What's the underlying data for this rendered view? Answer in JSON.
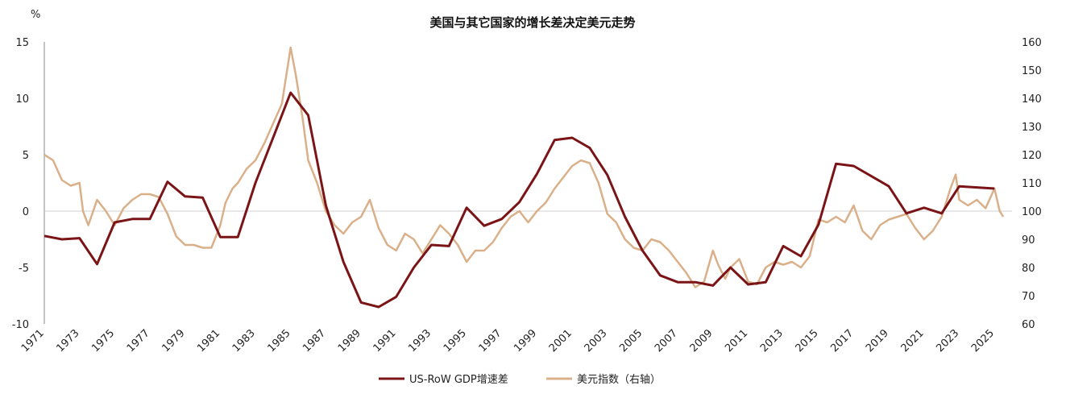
{
  "chart_data": {
    "type": "line",
    "title": "美国与其它国家的增长差决定美元走势",
    "left_unit": "%",
    "left_ylim": [
      -10,
      15
    ],
    "left_ticks": [
      15,
      10,
      5,
      0,
      -5,
      -10
    ],
    "right_ylim": [
      60,
      160
    ],
    "right_ticks": [
      160,
      150,
      140,
      130,
      120,
      110,
      100,
      90,
      80,
      70,
      60
    ],
    "xlim": [
      1971,
      2026
    ],
    "x_ticks": [
      "1971",
      "1973",
      "1975",
      "1977",
      "1979",
      "1981",
      "1983",
      "1985",
      "1987",
      "1989",
      "1991",
      "1993",
      "1995",
      "1997",
      "1999",
      "2001",
      "2003",
      "2005",
      "2007",
      "2009",
      "2011",
      "2013",
      "2015",
      "2017",
      "2019",
      "2021",
      "2023",
      "2025"
    ],
    "grid": "horizontal zero line only",
    "legend_position": "bottom-center",
    "series": [
      {
        "name": "US-RoW GDP增速差",
        "axis": "left",
        "color": "#7a1416",
        "points": [
          [
            1971,
            -2.2
          ],
          [
            1972,
            -2.5
          ],
          [
            1973,
            -2.4
          ],
          [
            1974,
            -4.7
          ],
          [
            1975,
            -1.0
          ],
          [
            1976,
            -0.7
          ],
          [
            1977,
            -0.7
          ],
          [
            1978,
            2.6
          ],
          [
            1979,
            1.3
          ],
          [
            1980,
            1.2
          ],
          [
            1981,
            -2.3
          ],
          [
            1982,
            -2.3
          ],
          [
            1983,
            2.5
          ],
          [
            1984,
            6.5
          ],
          [
            1985,
            10.5
          ],
          [
            1986,
            8.5
          ],
          [
            1987,
            0.5
          ],
          [
            1988,
            -4.5
          ],
          [
            1989,
            -8.1
          ],
          [
            1990,
            -8.5
          ],
          [
            1991,
            -7.6
          ],
          [
            1992,
            -5.0
          ],
          [
            1993,
            -3.0
          ],
          [
            1994,
            -3.1
          ],
          [
            1995,
            0.3
          ],
          [
            1996,
            -1.3
          ],
          [
            1997,
            -0.7
          ],
          [
            1998,
            0.8
          ],
          [
            1999,
            3.3
          ],
          [
            2000,
            6.3
          ],
          [
            2001,
            6.5
          ],
          [
            2002,
            5.6
          ],
          [
            2003,
            3.2
          ],
          [
            2004,
            -0.5
          ],
          [
            2005,
            -3.5
          ],
          [
            2006,
            -5.7
          ],
          [
            2007,
            -6.3
          ],
          [
            2008,
            -6.3
          ],
          [
            2009,
            -6.6
          ],
          [
            2010,
            -5.0
          ],
          [
            2011,
            -6.5
          ],
          [
            2012,
            -6.3
          ],
          [
            2013,
            -3.1
          ],
          [
            2014,
            -4.0
          ],
          [
            2015,
            -1.2
          ],
          [
            2016,
            4.2
          ],
          [
            2017,
            4.0
          ],
          [
            2018,
            3.1
          ],
          [
            2019,
            2.2
          ],
          [
            2020,
            -0.2
          ],
          [
            2021,
            0.3
          ],
          [
            2022,
            -0.2
          ],
          [
            2023,
            2.2
          ],
          [
            2024,
            2.1
          ],
          [
            2025,
            2.0
          ]
        ]
      },
      {
        "name": "美元指数（右轴）",
        "axis": "right",
        "color": "#d9b08a",
        "points": [
          [
            1971,
            120
          ],
          [
            1971.5,
            118
          ],
          [
            1972,
            111
          ],
          [
            1972.5,
            109
          ],
          [
            1973,
            110
          ],
          [
            1973.2,
            100
          ],
          [
            1973.5,
            95
          ],
          [
            1974,
            104
          ],
          [
            1974.5,
            100
          ],
          [
            1975,
            95
          ],
          [
            1975.5,
            101
          ],
          [
            1976,
            104
          ],
          [
            1976.5,
            106
          ],
          [
            1977,
            106
          ],
          [
            1977.5,
            105
          ],
          [
            1978,
            99
          ],
          [
            1978.5,
            91
          ],
          [
            1979,
            88
          ],
          [
            1979.5,
            88
          ],
          [
            1980,
            87
          ],
          [
            1980.5,
            87
          ],
          [
            1981,
            95
          ],
          [
            1981.3,
            103
          ],
          [
            1981.7,
            108
          ],
          [
            1982,
            110
          ],
          [
            1982.5,
            115
          ],
          [
            1983,
            118
          ],
          [
            1983.5,
            124
          ],
          [
            1984,
            131
          ],
          [
            1984.5,
            138
          ],
          [
            1985,
            158
          ],
          [
            1985.3,
            148
          ],
          [
            1985.7,
            132
          ],
          [
            1986,
            118
          ],
          [
            1986.5,
            110
          ],
          [
            1987,
            100
          ],
          [
            1987.5,
            95
          ],
          [
            1988,
            92
          ],
          [
            1988.5,
            96
          ],
          [
            1989,
            98
          ],
          [
            1989.5,
            104
          ],
          [
            1990,
            94
          ],
          [
            1990.5,
            88
          ],
          [
            1991,
            86
          ],
          [
            1991.5,
            92
          ],
          [
            1992,
            90
          ],
          [
            1992.5,
            85
          ],
          [
            1993,
            90
          ],
          [
            1993.5,
            95
          ],
          [
            1994,
            92
          ],
          [
            1994.5,
            88
          ],
          [
            1995,
            82
          ],
          [
            1995.5,
            86
          ],
          [
            1996,
            86
          ],
          [
            1996.5,
            89
          ],
          [
            1997,
            94
          ],
          [
            1997.5,
            98
          ],
          [
            1998,
            100
          ],
          [
            1998.5,
            96
          ],
          [
            1999,
            100
          ],
          [
            1999.5,
            103
          ],
          [
            2000,
            108
          ],
          [
            2000.5,
            112
          ],
          [
            2001,
            116
          ],
          [
            2001.5,
            118
          ],
          [
            2002,
            117
          ],
          [
            2002.5,
            110
          ],
          [
            2003,
            99
          ],
          [
            2003.5,
            96
          ],
          [
            2004,
            90
          ],
          [
            2004.5,
            87
          ],
          [
            2005,
            86
          ],
          [
            2005.5,
            90
          ],
          [
            2006,
            89
          ],
          [
            2006.5,
            86
          ],
          [
            2007,
            82
          ],
          [
            2007.5,
            78
          ],
          [
            2008,
            73
          ],
          [
            2008.5,
            75
          ],
          [
            2009,
            86
          ],
          [
            2009.3,
            81
          ],
          [
            2009.7,
            76
          ],
          [
            2010,
            80
          ],
          [
            2010.5,
            83
          ],
          [
            2011,
            75
          ],
          [
            2011.5,
            74
          ],
          [
            2012,
            80
          ],
          [
            2012.5,
            82
          ],
          [
            2013,
            81
          ],
          [
            2013.5,
            82
          ],
          [
            2014,
            80
          ],
          [
            2014.5,
            84
          ],
          [
            2015,
            97
          ],
          [
            2015.5,
            96
          ],
          [
            2016,
            98
          ],
          [
            2016.5,
            96
          ],
          [
            2017,
            102
          ],
          [
            2017.5,
            93
          ],
          [
            2018,
            90
          ],
          [
            2018.5,
            95
          ],
          [
            2019,
            97
          ],
          [
            2019.5,
            98
          ],
          [
            2020,
            99
          ],
          [
            2020.5,
            94
          ],
          [
            2021,
            90
          ],
          [
            2021.5,
            93
          ],
          [
            2022,
            98
          ],
          [
            2022.5,
            108
          ],
          [
            2022.8,
            113
          ],
          [
            2023,
            104
          ],
          [
            2023.5,
            102
          ],
          [
            2024,
            104
          ],
          [
            2024.5,
            101
          ],
          [
            2025,
            108
          ],
          [
            2025.3,
            100
          ],
          [
            2025.5,
            98
          ]
        ]
      }
    ]
  }
}
